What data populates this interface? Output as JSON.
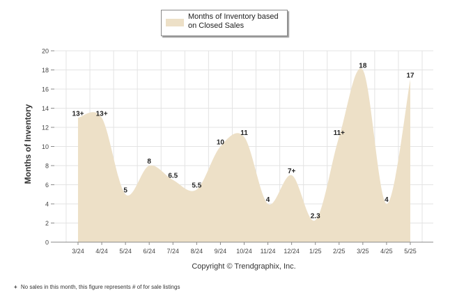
{
  "legend": {
    "label": "Months of Inventory based on Closed Sales"
  },
  "copyright": "Copyright © Trendgraphix, Inc.",
  "footnote": {
    "marker": "+",
    "text": "No sales in this month, this figure represents # of for sale listings"
  },
  "colors": {
    "area": "#ede0c7",
    "grid": "#e3e3e3",
    "axis": "#888888",
    "text": "#222222"
  },
  "chart_data": {
    "type": "area",
    "ylabel": "Months of Inventory",
    "xlabel": "",
    "ylim": [
      0,
      20
    ],
    "yticks": [
      0,
      2,
      4,
      6,
      8,
      10,
      12,
      14,
      16,
      18,
      20
    ],
    "grid": true,
    "legend_position": "top-center",
    "categories": [
      "3/24",
      "4/24",
      "5/24",
      "6/24",
      "7/24",
      "8/24",
      "9/24",
      "10/24",
      "11/24",
      "12/24",
      "1/25",
      "2/25",
      "3/25",
      "4/25",
      "5/25"
    ],
    "series": [
      {
        "name": "Months of Inventory based on Closed Sales",
        "values": [
          13,
          13,
          5,
          8,
          6.5,
          5.5,
          10,
          11,
          4,
          7,
          2.3,
          11,
          18,
          4,
          17
        ],
        "labels": [
          "13+",
          "13+",
          "5",
          "8",
          "6.5",
          "5.5",
          "10",
          "11",
          "4",
          "7+",
          "2.3",
          "11+",
          "18",
          "4",
          "17"
        ]
      }
    ]
  }
}
